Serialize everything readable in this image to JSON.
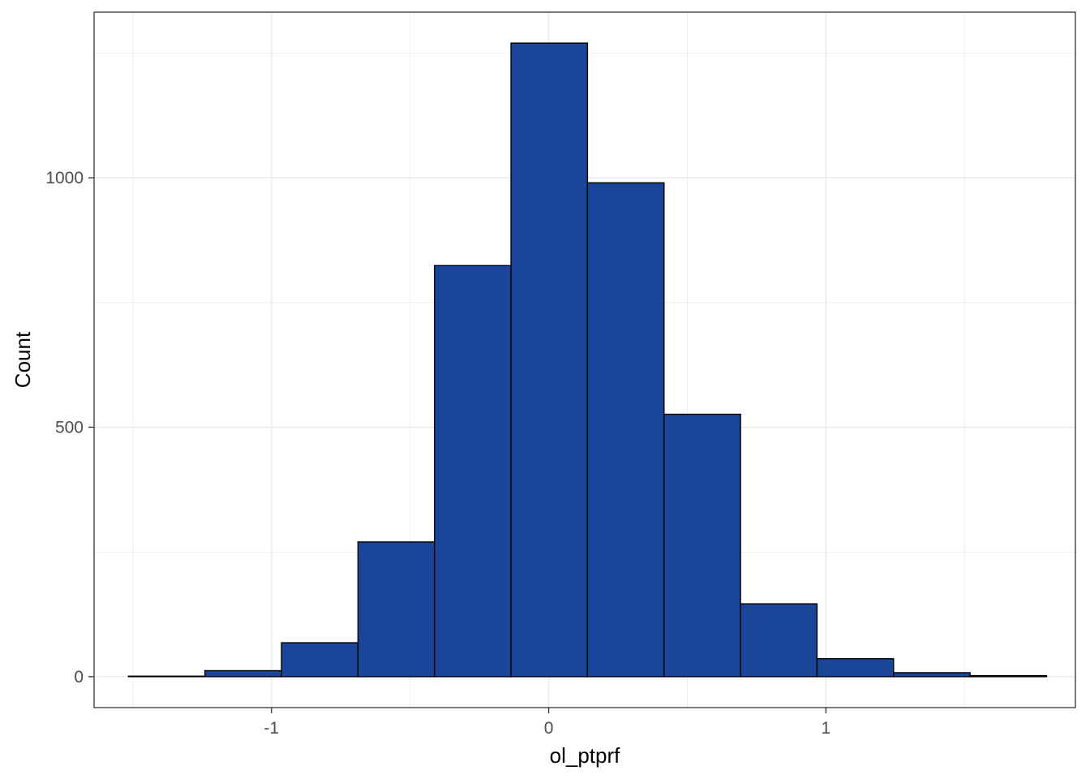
{
  "chart_data": {
    "type": "bar",
    "xlabel": "ol_ptprf",
    "ylabel": "Count",
    "xlim": [
      -1.64,
      1.9
    ],
    "ylim": [
      -62,
      1332
    ],
    "x_ticks": [
      -1,
      0,
      1
    ],
    "x_tick_labels": [
      "-1",
      "0",
      "1"
    ],
    "y_ticks": [
      0,
      500,
      1000
    ],
    "y_tick_labels": [
      "0",
      "500",
      "1000"
    ],
    "x_minor_gridlines": [
      -1.5,
      -0.5,
      0.5,
      1.5
    ],
    "y_minor_gridlines": [
      250,
      750,
      1250
    ],
    "grid": true,
    "bins": [
      {
        "x0": -1.516,
        "x1": -1.24,
        "count": 1
      },
      {
        "x0": -1.24,
        "x1": -0.964,
        "count": 12
      },
      {
        "x0": -0.964,
        "x1": -0.688,
        "count": 68
      },
      {
        "x0": -0.688,
        "x1": -0.412,
        "count": 270
      },
      {
        "x0": -0.412,
        "x1": -0.136,
        "count": 824
      },
      {
        "x0": -0.136,
        "x1": 0.14,
        "count": 1270
      },
      {
        "x0": 0.14,
        "x1": 0.416,
        "count": 990
      },
      {
        "x0": 0.416,
        "x1": 0.692,
        "count": 526
      },
      {
        "x0": 0.692,
        "x1": 0.968,
        "count": 146
      },
      {
        "x0": 0.968,
        "x1": 1.244,
        "count": 36
      },
      {
        "x0": 1.244,
        "x1": 1.52,
        "count": 8
      },
      {
        "x0": 1.52,
        "x1": 1.796,
        "count": 2
      }
    ],
    "colors": {
      "fill": "#1a4599",
      "stroke": "#000000",
      "grid": "#ebebeb",
      "panel_border": "#333333"
    }
  }
}
